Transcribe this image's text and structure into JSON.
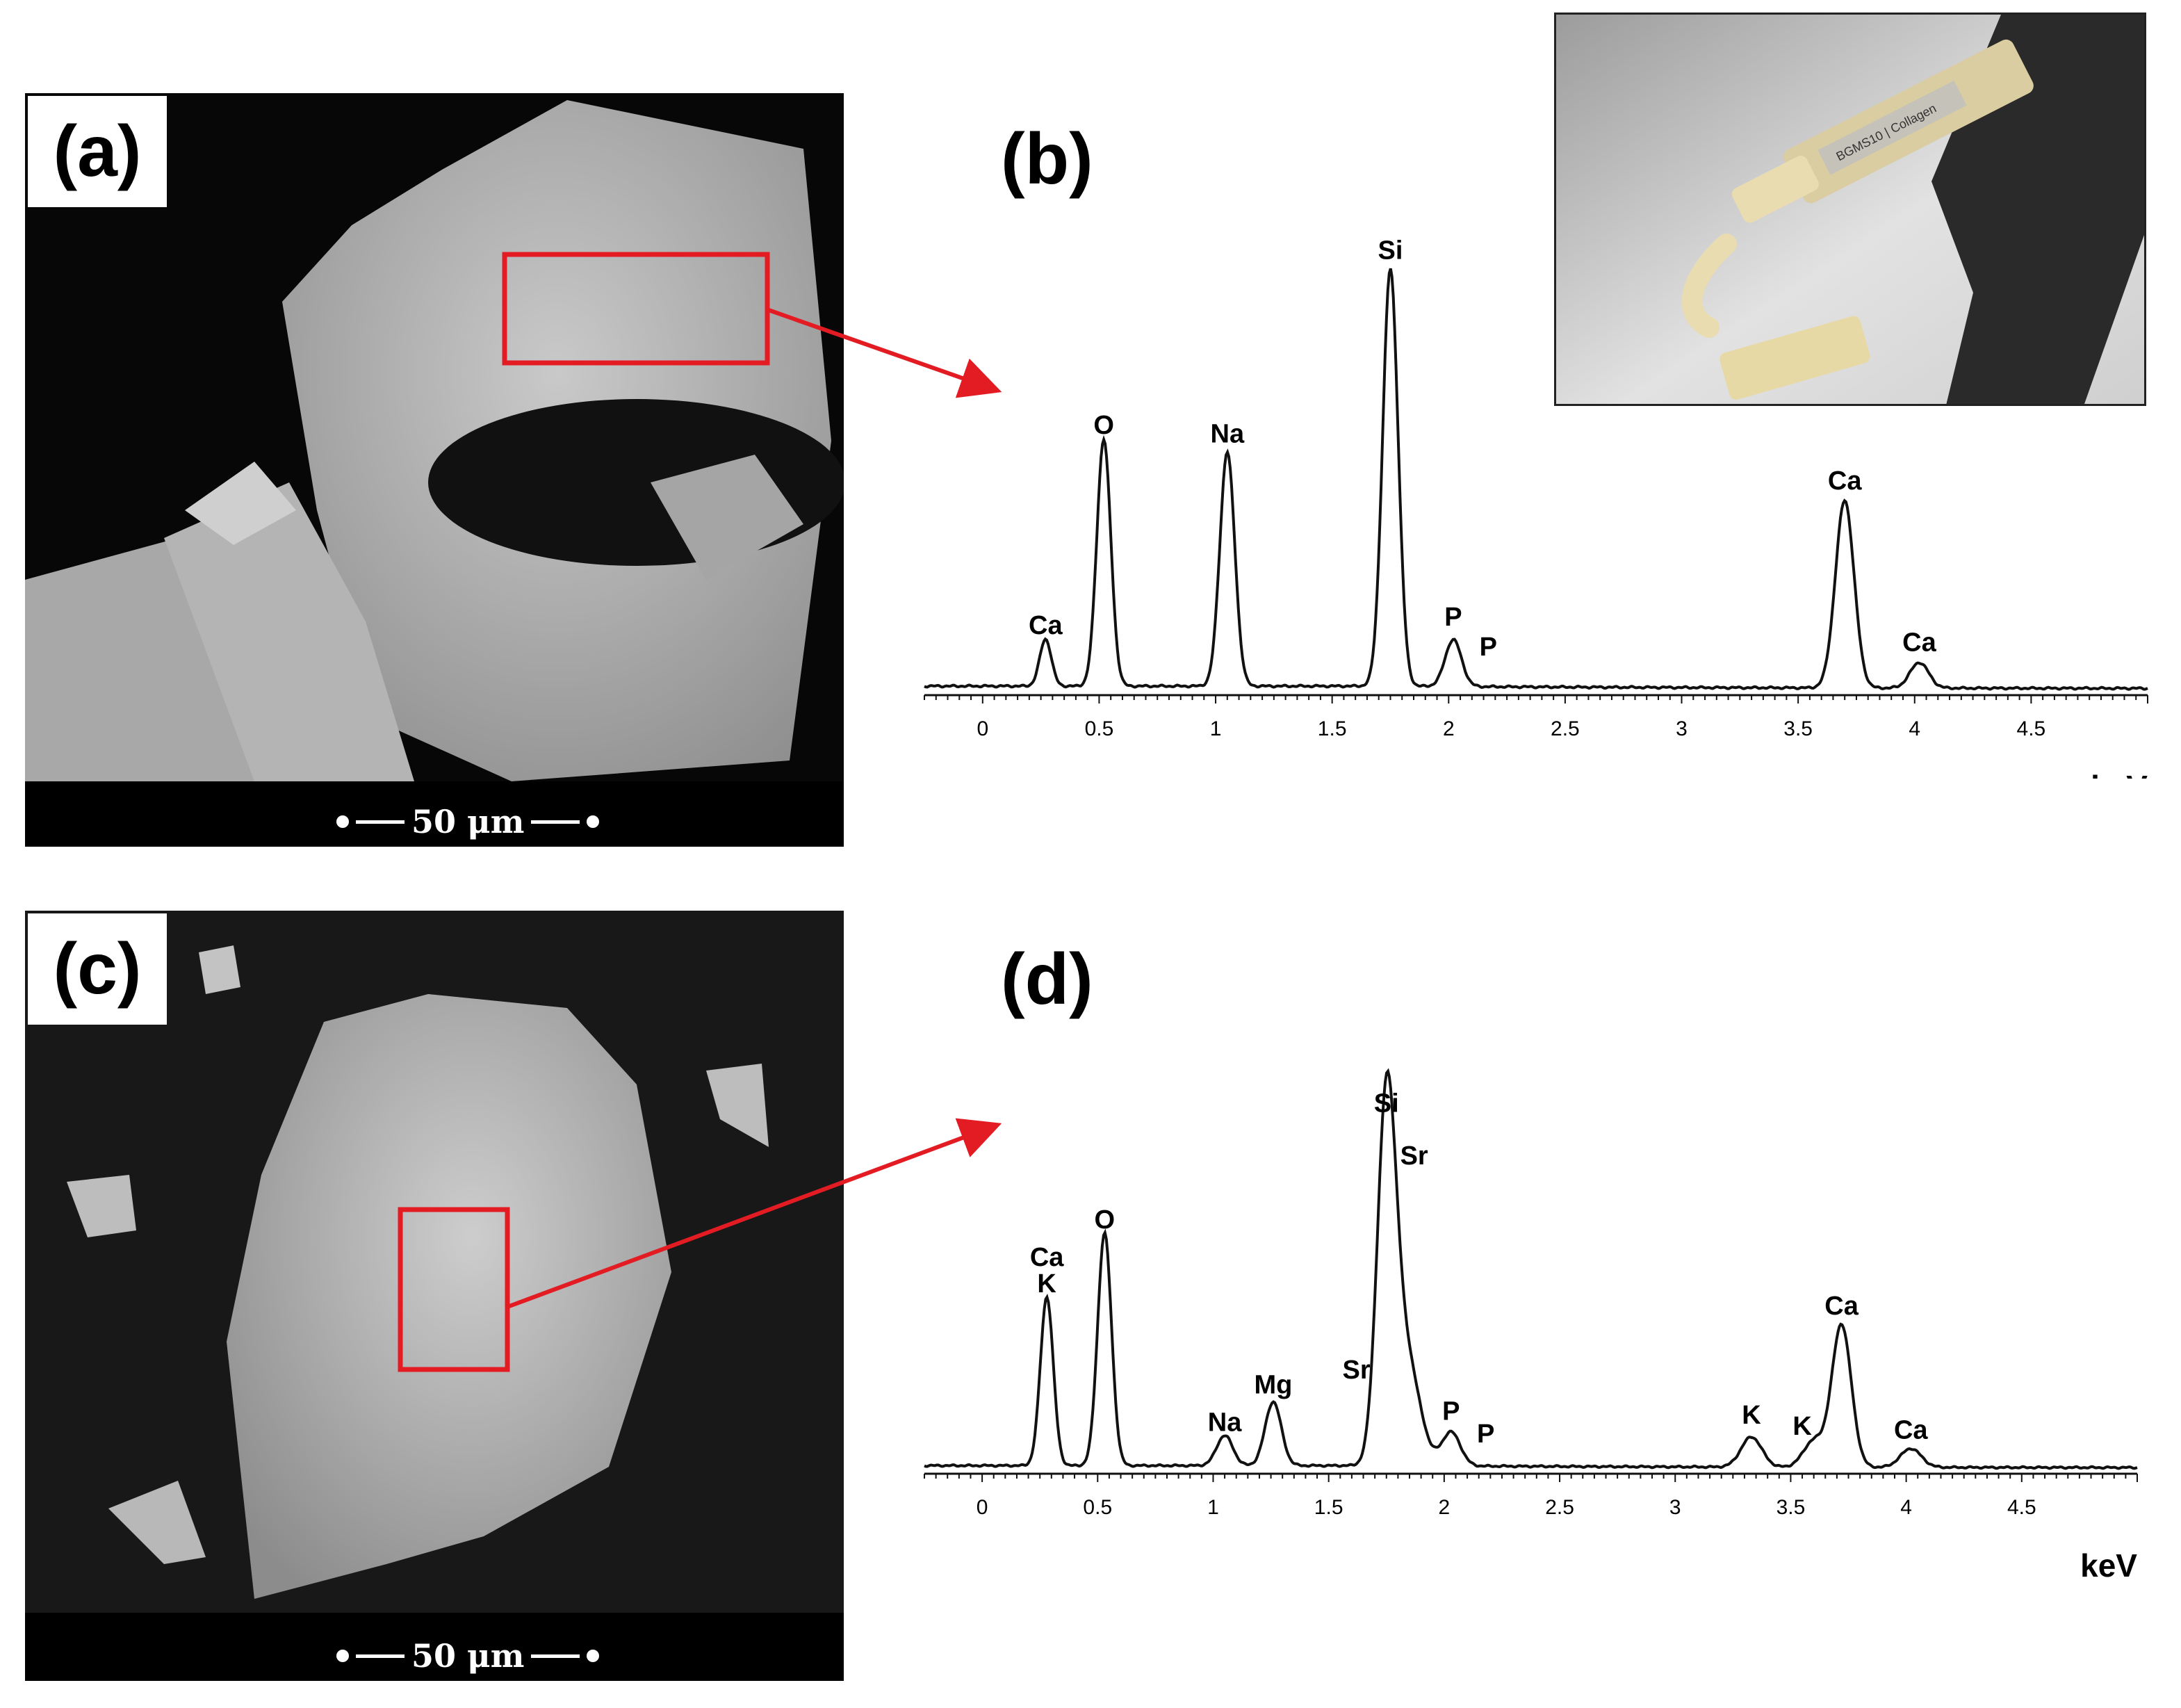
{
  "panels": {
    "a": {
      "label": "(a)",
      "scale_text": "50 μm"
    },
    "b": {
      "label": "(b)"
    },
    "c": {
      "label": "(c)",
      "scale_text": "50 μm"
    },
    "d": {
      "label": "(d)"
    },
    "photo": {
      "syringe_text": "BGMS10 | Collagen"
    }
  },
  "colors": {
    "highlight": "#e31b23",
    "sem_background": "#0d0d0d",
    "sem_grain": "#bdbdbd"
  },
  "chart_data": [
    {
      "type": "line",
      "title": "",
      "xlabel": "keV",
      "ylabel": "",
      "xlim": [
        -0.25,
        5.0
      ],
      "xticks": [
        "0",
        "0.5",
        "1",
        "1.5",
        "2",
        "2.5",
        "3",
        "3.5",
        "4",
        "4.5"
      ],
      "xtick_values": [
        0,
        0.5,
        1,
        1.5,
        2,
        2.5,
        3,
        3.5,
        4,
        4.5
      ],
      "ylim": [
        0,
        100
      ],
      "peaks": [
        {
          "x": 0.27,
          "y": 11,
          "w": 0.025
        },
        {
          "x": 0.52,
          "y": 58,
          "w": 0.03
        },
        {
          "x": 1.05,
          "y": 55,
          "w": 0.032
        },
        {
          "x": 1.75,
          "y": 98,
          "w": 0.033
        },
        {
          "x": 2.02,
          "y": 11,
          "w": 0.035
        },
        {
          "x": 3.7,
          "y": 44,
          "w": 0.04
        },
        {
          "x": 4.02,
          "y": 6,
          "w": 0.04
        }
      ],
      "peak_labels": [
        {
          "text": "Ca",
          "x": 0.27,
          "y": 14
        },
        {
          "text": "O",
          "x": 0.52,
          "y": 61
        },
        {
          "text": "Na",
          "x": 1.05,
          "y": 59
        },
        {
          "text": "Si",
          "x": 1.75,
          "y": 102
        },
        {
          "text": "P",
          "x": 2.02,
          "y": 16
        },
        {
          "text": "P",
          "x": 2.17,
          "y": 9
        },
        {
          "text": "Ca",
          "x": 3.7,
          "y": 48
        },
        {
          "text": "Ca",
          "x": 4.02,
          "y": 10
        }
      ]
    },
    {
      "type": "line",
      "title": "",
      "xlabel": "keV",
      "ylabel": "",
      "xlim": [
        -0.25,
        5.0
      ],
      "xticks": [
        "0",
        "0.5",
        "1",
        "1.5",
        "2",
        "2.5",
        "3",
        "3.5",
        "4",
        "4.5"
      ],
      "xtick_values": [
        0,
        0.5,
        1,
        1.5,
        2,
        2.5,
        3,
        3.5,
        4,
        4.5
      ],
      "ylim": [
        0,
        100
      ],
      "peaks": [
        {
          "x": 0.28,
          "y": 45,
          "w": 0.028
        },
        {
          "x": 0.53,
          "y": 62,
          "w": 0.03
        },
        {
          "x": 1.05,
          "y": 8,
          "w": 0.035
        },
        {
          "x": 1.26,
          "y": 17,
          "w": 0.035
        },
        {
          "x": 1.75,
          "y": 92,
          "w": 0.04
        },
        {
          "x": 1.83,
          "y": 30,
          "w": 0.06
        },
        {
          "x": 2.03,
          "y": 9,
          "w": 0.04
        },
        {
          "x": 3.33,
          "y": 8,
          "w": 0.045
        },
        {
          "x": 3.6,
          "y": 7,
          "w": 0.045
        },
        {
          "x": 3.72,
          "y": 38,
          "w": 0.042
        },
        {
          "x": 4.02,
          "y": 5,
          "w": 0.045
        }
      ],
      "peak_labels": [
        {
          "text": "Ca",
          "x": 0.28,
          "y": 55
        },
        {
          "text": "K",
          "x": 0.28,
          "y": 48
        },
        {
          "text": "O",
          "x": 0.53,
          "y": 65
        },
        {
          "text": "Na",
          "x": 1.05,
          "y": 11
        },
        {
          "text": "Mg",
          "x": 1.26,
          "y": 21
        },
        {
          "text": "Sr",
          "x": 1.62,
          "y": 25
        },
        {
          "text": "Si",
          "x": 1.75,
          "y": 96
        },
        {
          "text": "Sr",
          "x": 1.87,
          "y": 82
        },
        {
          "text": "P",
          "x": 2.03,
          "y": 14
        },
        {
          "text": "P",
          "x": 2.18,
          "y": 8
        },
        {
          "text": "K",
          "x": 3.33,
          "y": 13
        },
        {
          "text": "K",
          "x": 3.55,
          "y": 10
        },
        {
          "text": "Ca",
          "x": 3.72,
          "y": 42
        },
        {
          "text": "Ca",
          "x": 4.02,
          "y": 9
        }
      ]
    }
  ]
}
